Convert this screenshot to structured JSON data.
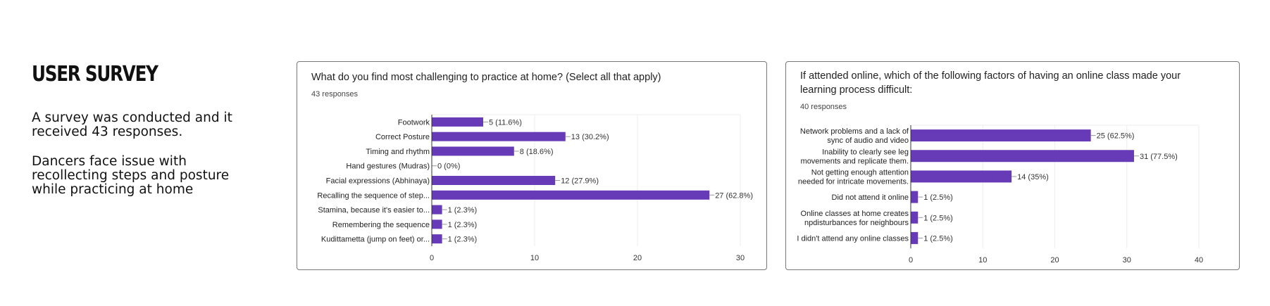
{
  "intro": {
    "heading": "USER SURVEY",
    "para1": "A survey was conducted and it received 43 responses.",
    "para2": "Dancers face issue with recollecting steps and posture while practicing at home"
  },
  "colors": {
    "bar": "#673ab7",
    "grid": "#eeeeee",
    "axis": "#333333"
  },
  "chart_data": [
    {
      "type": "bar",
      "orientation": "horizontal",
      "title": "What do you find most challenging to practice at home? (Select all that apply)",
      "subtitle": "43 responses",
      "categories": [
        [
          "Footwork"
        ],
        [
          "Correct Posture"
        ],
        [
          "Timing and rhythm"
        ],
        [
          "Hand gestures (Mudras)"
        ],
        [
          "Facial expressions (Abhinaya)"
        ],
        [
          "Recalling the sequence of step..."
        ],
        [
          "Stamina, because it's easier to..."
        ],
        [
          "Remembering the sequence"
        ],
        [
          "Kudittametta (jump on feet) or..."
        ]
      ],
      "values": [
        5,
        13,
        8,
        0,
        12,
        27,
        1,
        1,
        1
      ],
      "labels": [
        "5 (11.6%)",
        "13 (30.2%)",
        "8 (18.6%)",
        "0 (0%)",
        "12 (27.9%)",
        "27 (62.8%)",
        "1 (2.3%)",
        "1 (2.3%)",
        "1 (2.3%)"
      ],
      "xlim": [
        0,
        30
      ],
      "xticks": [
        0,
        10,
        20,
        30
      ]
    },
    {
      "type": "bar",
      "orientation": "horizontal",
      "title": "If attended online, which of the following factors of having an online class made your learning process difficult:",
      "subtitle": "40 responses",
      "categories": [
        [
          "Network problems and a lack of",
          "sync of audio and video"
        ],
        [
          "Inability to clearly see leg",
          "movements and replicate them."
        ],
        [
          "Not getting enough attention",
          "needed for intricate movements."
        ],
        [
          "Did not attend it online"
        ],
        [
          "Online classes at home creates",
          "npdisturbances for neighbours"
        ],
        [
          "I didn't attend any online classes"
        ]
      ],
      "values": [
        25,
        31,
        14,
        1,
        1,
        1
      ],
      "labels": [
        "25 (62.5%)",
        "31 (77.5%)",
        "14 (35%)",
        "1 (2.5%)",
        "1 (2.5%)",
        "1 (2.5%)"
      ],
      "xlim": [
        0,
        40
      ],
      "xticks": [
        0,
        10,
        20,
        30,
        40
      ]
    }
  ]
}
